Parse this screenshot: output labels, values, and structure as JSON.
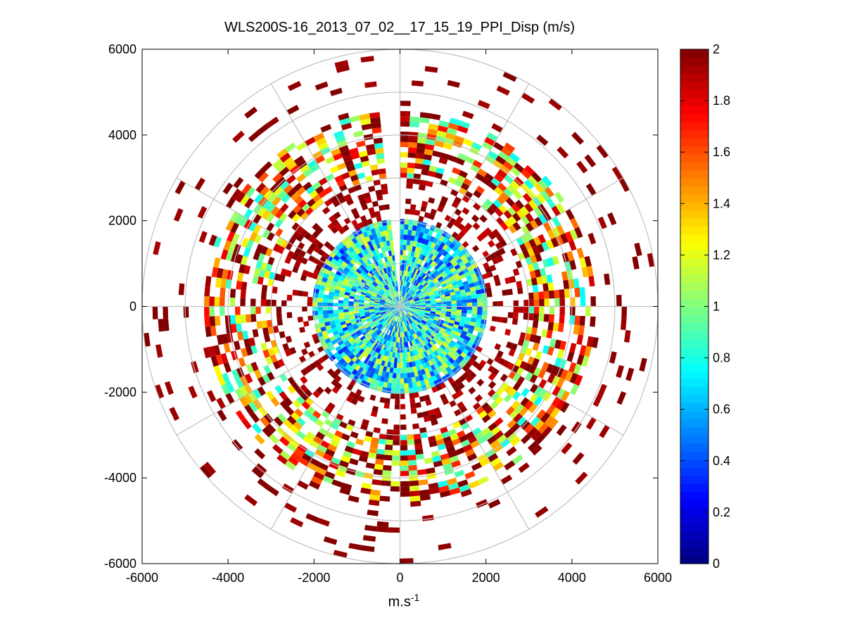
{
  "chart_data": {
    "type": "heatmap",
    "subtype": "polar-ppi",
    "title": "WLS200S-16_2013_07_02__17_15_19_PPI_Disp (m/s)",
    "xlabel": "m.s",
    "xlabel_superscript": "-1",
    "ylabel": "",
    "xlim": [
      -6000,
      6000
    ],
    "ylim": [
      -6000,
      6000
    ],
    "xticks": [
      "-6000",
      "-4000",
      "-2000",
      "0",
      "2000",
      "4000",
      "6000"
    ],
    "yticks": [
      "6000",
      "4000",
      "2000",
      "0",
      "-2000",
      "-4000",
      "-6000"
    ],
    "xtick_values": [
      -6000,
      -4000,
      -2000,
      0,
      2000,
      4000,
      6000
    ],
    "ytick_values": [
      6000,
      4000,
      2000,
      0,
      -2000,
      -4000,
      -6000
    ],
    "polar_grid_radii": [
      1000,
      2000,
      3000,
      4000,
      5000,
      6000
    ],
    "polar_grid_angles_deg": [
      0,
      30,
      60,
      90,
      120,
      150,
      180,
      210,
      240,
      270,
      300,
      330
    ],
    "colorbar": {
      "colormap": "jet",
      "range": [
        0,
        2
      ],
      "ticks": [
        "0",
        "0.2",
        "0.4",
        "0.6",
        "0.8",
        "1",
        "1.2",
        "1.4",
        "1.6",
        "1.8",
        "2"
      ],
      "tick_values": [
        0,
        0.2,
        0.4,
        0.6,
        0.8,
        1.0,
        1.2,
        1.4,
        1.6,
        1.8,
        2.0
      ]
    },
    "range_gate_m": 120,
    "azimuth_step_deg": 3,
    "missing_sector_deg": [
      -6,
      0
    ],
    "regions": [
      {
        "r_min": 0,
        "r_max": 2000,
        "coverage": 0.97,
        "value_mean": 0.75,
        "value_spread": 0.45
      },
      {
        "r_min": 2000,
        "r_max": 3000,
        "coverage": 0.35,
        "value_mean": 1.95,
        "value_spread": 0.1
      },
      {
        "r_min": 3000,
        "r_max": 4450,
        "coverage": 0.62,
        "value_mean": 1.55,
        "value_spread": 0.8
      },
      {
        "r_min": 4450,
        "r_max": 6000,
        "coverage": 0.07,
        "value_mean": 1.97,
        "value_spread": 0.05
      }
    ]
  }
}
